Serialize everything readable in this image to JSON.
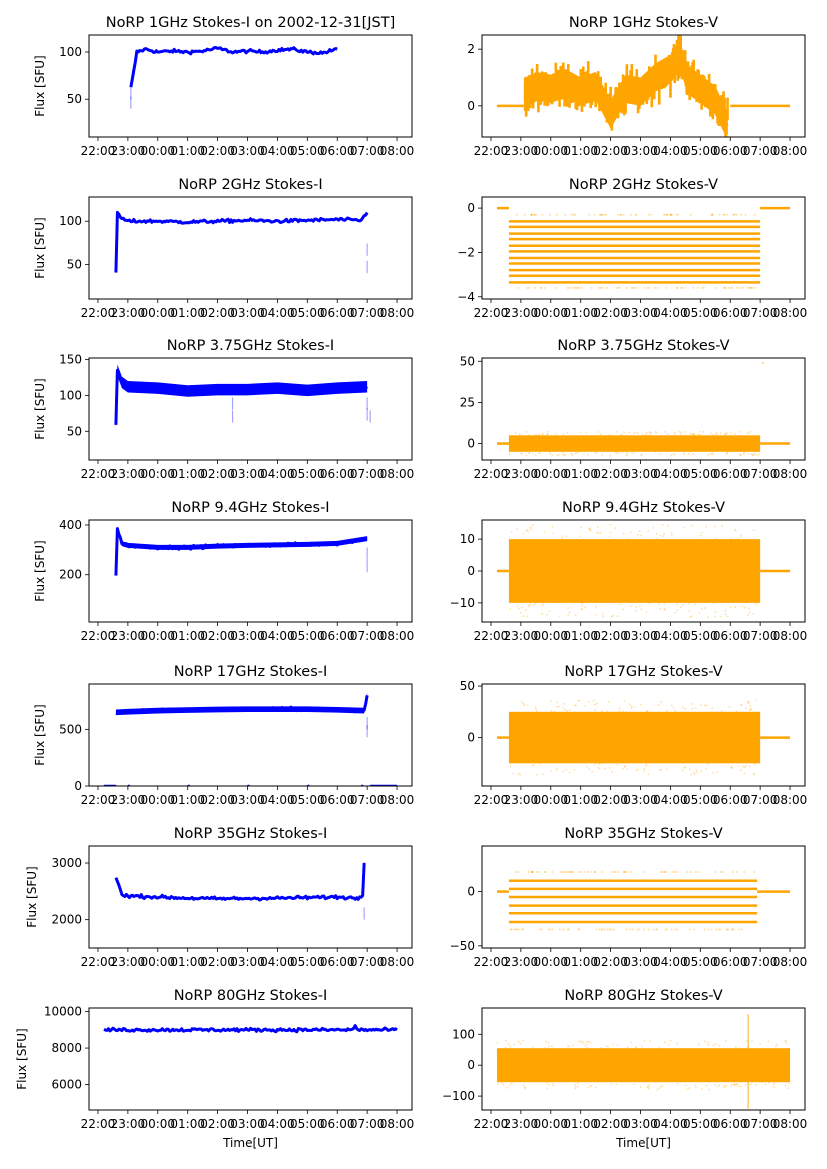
{
  "chart_data": {
    "type": "scatter",
    "figure_title_date": "2002-12-31[JST]",
    "x_ticks": [
      "22:00",
      "23:00",
      "00:00",
      "01:00",
      "02:00",
      "03:00",
      "04:00",
      "05:00",
      "06:00",
      "07:00",
      "08:00"
    ],
    "x_range_hours": [
      21.7,
      32.5
    ],
    "xlabel": "Time[UT]",
    "panels": [
      {
        "id": "1ghz-i",
        "title": "NoRP 1GHz Stokes-I on 2002-12-31[JST]",
        "ylabel": "Flux [SFU]",
        "color": "#0000ff",
        "ylim": [
          10,
          118
        ],
        "yticks": [
          50,
          100
        ],
        "series": [
          [
            23.1,
            62
          ],
          [
            23.2,
            80
          ],
          [
            23.3,
            100
          ],
          [
            23.6,
            103
          ],
          [
            24.0,
            100
          ],
          [
            24.5,
            101
          ],
          [
            25.0,
            100
          ],
          [
            25.5,
            101
          ],
          [
            26.0,
            104
          ],
          [
            26.5,
            100
          ],
          [
            27.0,
            101
          ],
          [
            27.5,
            100
          ],
          [
            28.0,
            102
          ],
          [
            28.5,
            103
          ],
          [
            29.0,
            100
          ],
          [
            29.5,
            99
          ],
          [
            30.0,
            103
          ]
        ],
        "outliers": [
          [
            23.1,
            40
          ],
          [
            23.1,
            50
          ]
        ],
        "kind": "line"
      },
      {
        "id": "1ghz-v",
        "title": "NoRP 1GHz Stokes-V",
        "ylabel": "",
        "color": "#ffa500",
        "ylim": [
          -1.1,
          2.5
        ],
        "yticks": [
          0,
          2
        ],
        "series": [
          [
            23.1,
            0.3
          ],
          [
            23.5,
            0.7
          ],
          [
            24.0,
            0.6
          ],
          [
            24.5,
            0.8
          ],
          [
            25.0,
            0.5
          ],
          [
            25.5,
            0.7
          ],
          [
            26.0,
            -0.3
          ],
          [
            26.5,
            0.6
          ],
          [
            27.0,
            0.5
          ],
          [
            27.5,
            1.0
          ],
          [
            28.0,
            1.3
          ],
          [
            28.3,
            1.8
          ],
          [
            28.6,
            0.9
          ],
          [
            29.0,
            0.6
          ],
          [
            29.5,
            0.2
          ],
          [
            29.9,
            -0.7
          ]
        ],
        "spread": 0.5,
        "flat": [
          [
            22.2,
            23.1
          ],
          [
            30.0,
            32.0
          ]
        ],
        "kind": "band"
      },
      {
        "id": "2ghz-i",
        "title": "NoRP 2GHz Stokes-I",
        "ylabel": "Flux [SFU]",
        "color": "#0000ff",
        "ylim": [
          10,
          128
        ],
        "yticks": [
          50,
          100
        ],
        "series": [
          [
            22.6,
            40
          ],
          [
            22.65,
            110
          ],
          [
            22.8,
            103
          ],
          [
            23.0,
            100
          ],
          [
            24.0,
            100
          ],
          [
            25.0,
            99
          ],
          [
            26.0,
            100
          ],
          [
            27.0,
            101
          ],
          [
            28.0,
            100
          ],
          [
            29.0,
            101
          ],
          [
            30.0,
            102
          ],
          [
            30.8,
            101
          ],
          [
            31.0,
            110
          ]
        ],
        "outliers": [
          [
            31.0,
            40
          ],
          [
            31.0,
            60
          ]
        ],
        "kind": "line"
      },
      {
        "id": "2ghz-v",
        "title": "NoRP 2GHz Stokes-V",
        "ylabel": "",
        "color": "#ffa500",
        "ylim": [
          -4.1,
          0.5
        ],
        "yticks": [
          -4,
          -2,
          0
        ],
        "levels": [
          -0.3,
          -0.6,
          -0.85,
          -1.15,
          -1.4,
          -1.7,
          -1.95,
          -2.25,
          -2.5,
          -2.8,
          -3.05,
          -3.35,
          -3.6
        ],
        "active": [
          22.6,
          31.0
        ],
        "flat": [
          [
            22.2,
            22.6
          ],
          [
            31.0,
            32.0
          ]
        ],
        "kind": "levels"
      },
      {
        "id": "3.75ghz-i",
        "title": "NoRP 3.75GHz Stokes-I",
        "ylabel": "Flux [SFU]",
        "color": "#0000ff",
        "ylim": [
          10,
          152
        ],
        "yticks": [
          50,
          100,
          150
        ],
        "series": [
          [
            22.6,
            60
          ],
          [
            22.65,
            135
          ],
          [
            22.8,
            118
          ],
          [
            23.0,
            112
          ],
          [
            24.0,
            110
          ],
          [
            25.0,
            106
          ],
          [
            26.0,
            108
          ],
          [
            27.0,
            108
          ],
          [
            28.0,
            110
          ],
          [
            29.0,
            107
          ],
          [
            30.0,
            110
          ],
          [
            31.0,
            112
          ]
        ],
        "spread": 8,
        "outliers": [
          [
            26.5,
            62
          ],
          [
            26.5,
            80
          ],
          [
            31.0,
            65
          ],
          [
            31.0,
            80
          ],
          [
            31.1,
            62
          ]
        ],
        "kind": "band"
      },
      {
        "id": "3.75ghz-v",
        "title": "NoRP 3.75GHz Stokes-V",
        "ylabel": "",
        "color": "#ffa500",
        "ylim": [
          -10,
          52
        ],
        "yticks": [
          0,
          25,
          50
        ],
        "noise": [
          22.6,
          31.0,
          5
        ],
        "flat": [
          [
            22.2,
            22.6
          ],
          [
            31.0,
            32.0
          ]
        ],
        "outliers": [
          [
            31.1,
            49
          ]
        ],
        "kind": "noise"
      },
      {
        "id": "9.4ghz-i",
        "title": "NoRP 9.4GHz Stokes-I",
        "ylabel": "Flux [SFU]",
        "color": "#0000ff",
        "ylim": [
          10,
          420
        ],
        "yticks": [
          200,
          400
        ],
        "series": [
          [
            22.6,
            200
          ],
          [
            22.65,
            385
          ],
          [
            22.8,
            325
          ],
          [
            23.0,
            318
          ],
          [
            24.0,
            310
          ],
          [
            25.0,
            310
          ],
          [
            26.0,
            315
          ],
          [
            27.0,
            318
          ],
          [
            28.0,
            320
          ],
          [
            29.0,
            322
          ],
          [
            30.0,
            326
          ],
          [
            31.0,
            345
          ]
        ],
        "spread": 10,
        "outliers": [
          [
            31.0,
            210
          ],
          [
            31.0,
            260
          ]
        ],
        "kind": "band"
      },
      {
        "id": "9.4ghz-v",
        "title": "NoRP 9.4GHz Stokes-V",
        "ylabel": "",
        "color": "#ffa500",
        "ylim": [
          -16,
          16
        ],
        "yticks": [
          -10,
          0,
          10
        ],
        "noise": [
          22.6,
          31.0,
          10
        ],
        "flat": [
          [
            22.2,
            22.6
          ],
          [
            31.0,
            32.0
          ]
        ],
        "kind": "noise"
      },
      {
        "id": "17ghz-i",
        "title": "NoRP 17GHz Stokes-I",
        "ylabel": "Flux [SFU]",
        "color": "#0000ff",
        "ylim": [
          0,
          900
        ],
        "yticks": [
          0,
          500
        ],
        "series": [
          [
            22.6,
            650
          ],
          [
            23.0,
            655
          ],
          [
            24.0,
            665
          ],
          [
            25.0,
            670
          ],
          [
            26.0,
            675
          ],
          [
            27.0,
            678
          ],
          [
            28.0,
            678
          ],
          [
            29.0,
            678
          ],
          [
            30.0,
            672
          ],
          [
            30.9,
            665
          ],
          [
            31.0,
            800
          ]
        ],
        "spread": 25,
        "outliers": [
          [
            31.0,
            430
          ],
          [
            31.0,
            500
          ]
        ],
        "zero_segments": [
          [
            22.2,
            22.6
          ],
          [
            23.0,
            23.05
          ],
          [
            25.0,
            25.05
          ],
          [
            27.0,
            27.05
          ],
          [
            29.0,
            29.05
          ],
          [
            30.8,
            30.85
          ],
          [
            31.1,
            32.0
          ]
        ],
        "kind": "band"
      },
      {
        "id": "17ghz-v",
        "title": "NoRP 17GHz Stokes-V",
        "ylabel": "",
        "color": "#ffa500",
        "ylim": [
          -47,
          52
        ],
        "yticks": [
          0,
          50
        ],
        "noise": [
          22.6,
          31.0,
          25
        ],
        "flat": [
          [
            22.2,
            22.6
          ],
          [
            31.0,
            32.0
          ]
        ],
        "kind": "noise"
      },
      {
        "id": "35ghz-i",
        "title": "NoRP 35GHz Stokes-I",
        "ylabel": "Flux [SFU]",
        "color": "#0000ff",
        "ylim": [
          1500,
          3300
        ],
        "yticks": [
          2000,
          3000
        ],
        "series": [
          [
            22.6,
            2750
          ],
          [
            22.8,
            2450
          ],
          [
            23.0,
            2420
          ],
          [
            24.0,
            2400
          ],
          [
            25.0,
            2380
          ],
          [
            26.0,
            2370
          ],
          [
            27.0,
            2375
          ],
          [
            28.0,
            2380
          ],
          [
            29.0,
            2390
          ],
          [
            30.0,
            2400
          ],
          [
            30.7,
            2380
          ],
          [
            30.85,
            2450
          ],
          [
            30.9,
            3000
          ]
        ],
        "outliers": [
          [
            30.9,
            2000
          ],
          [
            30.9,
            2800
          ]
        ],
        "kind": "line"
      },
      {
        "id": "35ghz-v",
        "title": "NoRP 35GHz Stokes-V",
        "ylabel": "",
        "color": "#ffa500",
        "ylim": [
          -52,
          42
        ],
        "yticks": [
          -50,
          0
        ],
        "levels": [
          18,
          10,
          2.5,
          -5,
          -13,
          -20,
          -28,
          -35
        ],
        "active": [
          22.6,
          30.9
        ],
        "flat": [
          [
            22.2,
            22.6
          ],
          [
            30.9,
            32.0
          ]
        ],
        "kind": "levels"
      },
      {
        "id": "80ghz-i",
        "title": "NoRP 80GHz Stokes-I",
        "ylabel": "Flux [SFU]",
        "color": "#0000ff",
        "ylim": [
          4600,
          10200
        ],
        "yticks": [
          6000,
          8000,
          10000
        ],
        "series": [
          [
            22.2,
            9000
          ],
          [
            26.0,
            9000
          ],
          [
            30.5,
            9000
          ],
          [
            30.6,
            9200
          ],
          [
            30.7,
            9000
          ],
          [
            32.0,
            9000
          ]
        ],
        "kind": "line"
      },
      {
        "id": "80ghz-v",
        "title": "NoRP 80GHz Stokes-V",
        "ylabel": "",
        "color": "#ffa500",
        "ylim": [
          -145,
          185
        ],
        "yticks": [
          -100,
          0,
          100
        ],
        "noise": [
          22.2,
          32.0,
          55
        ],
        "spikes": [
          [
            30.6,
            165
          ],
          [
            30.6,
            -140
          ]
        ],
        "kind": "noise"
      }
    ]
  }
}
